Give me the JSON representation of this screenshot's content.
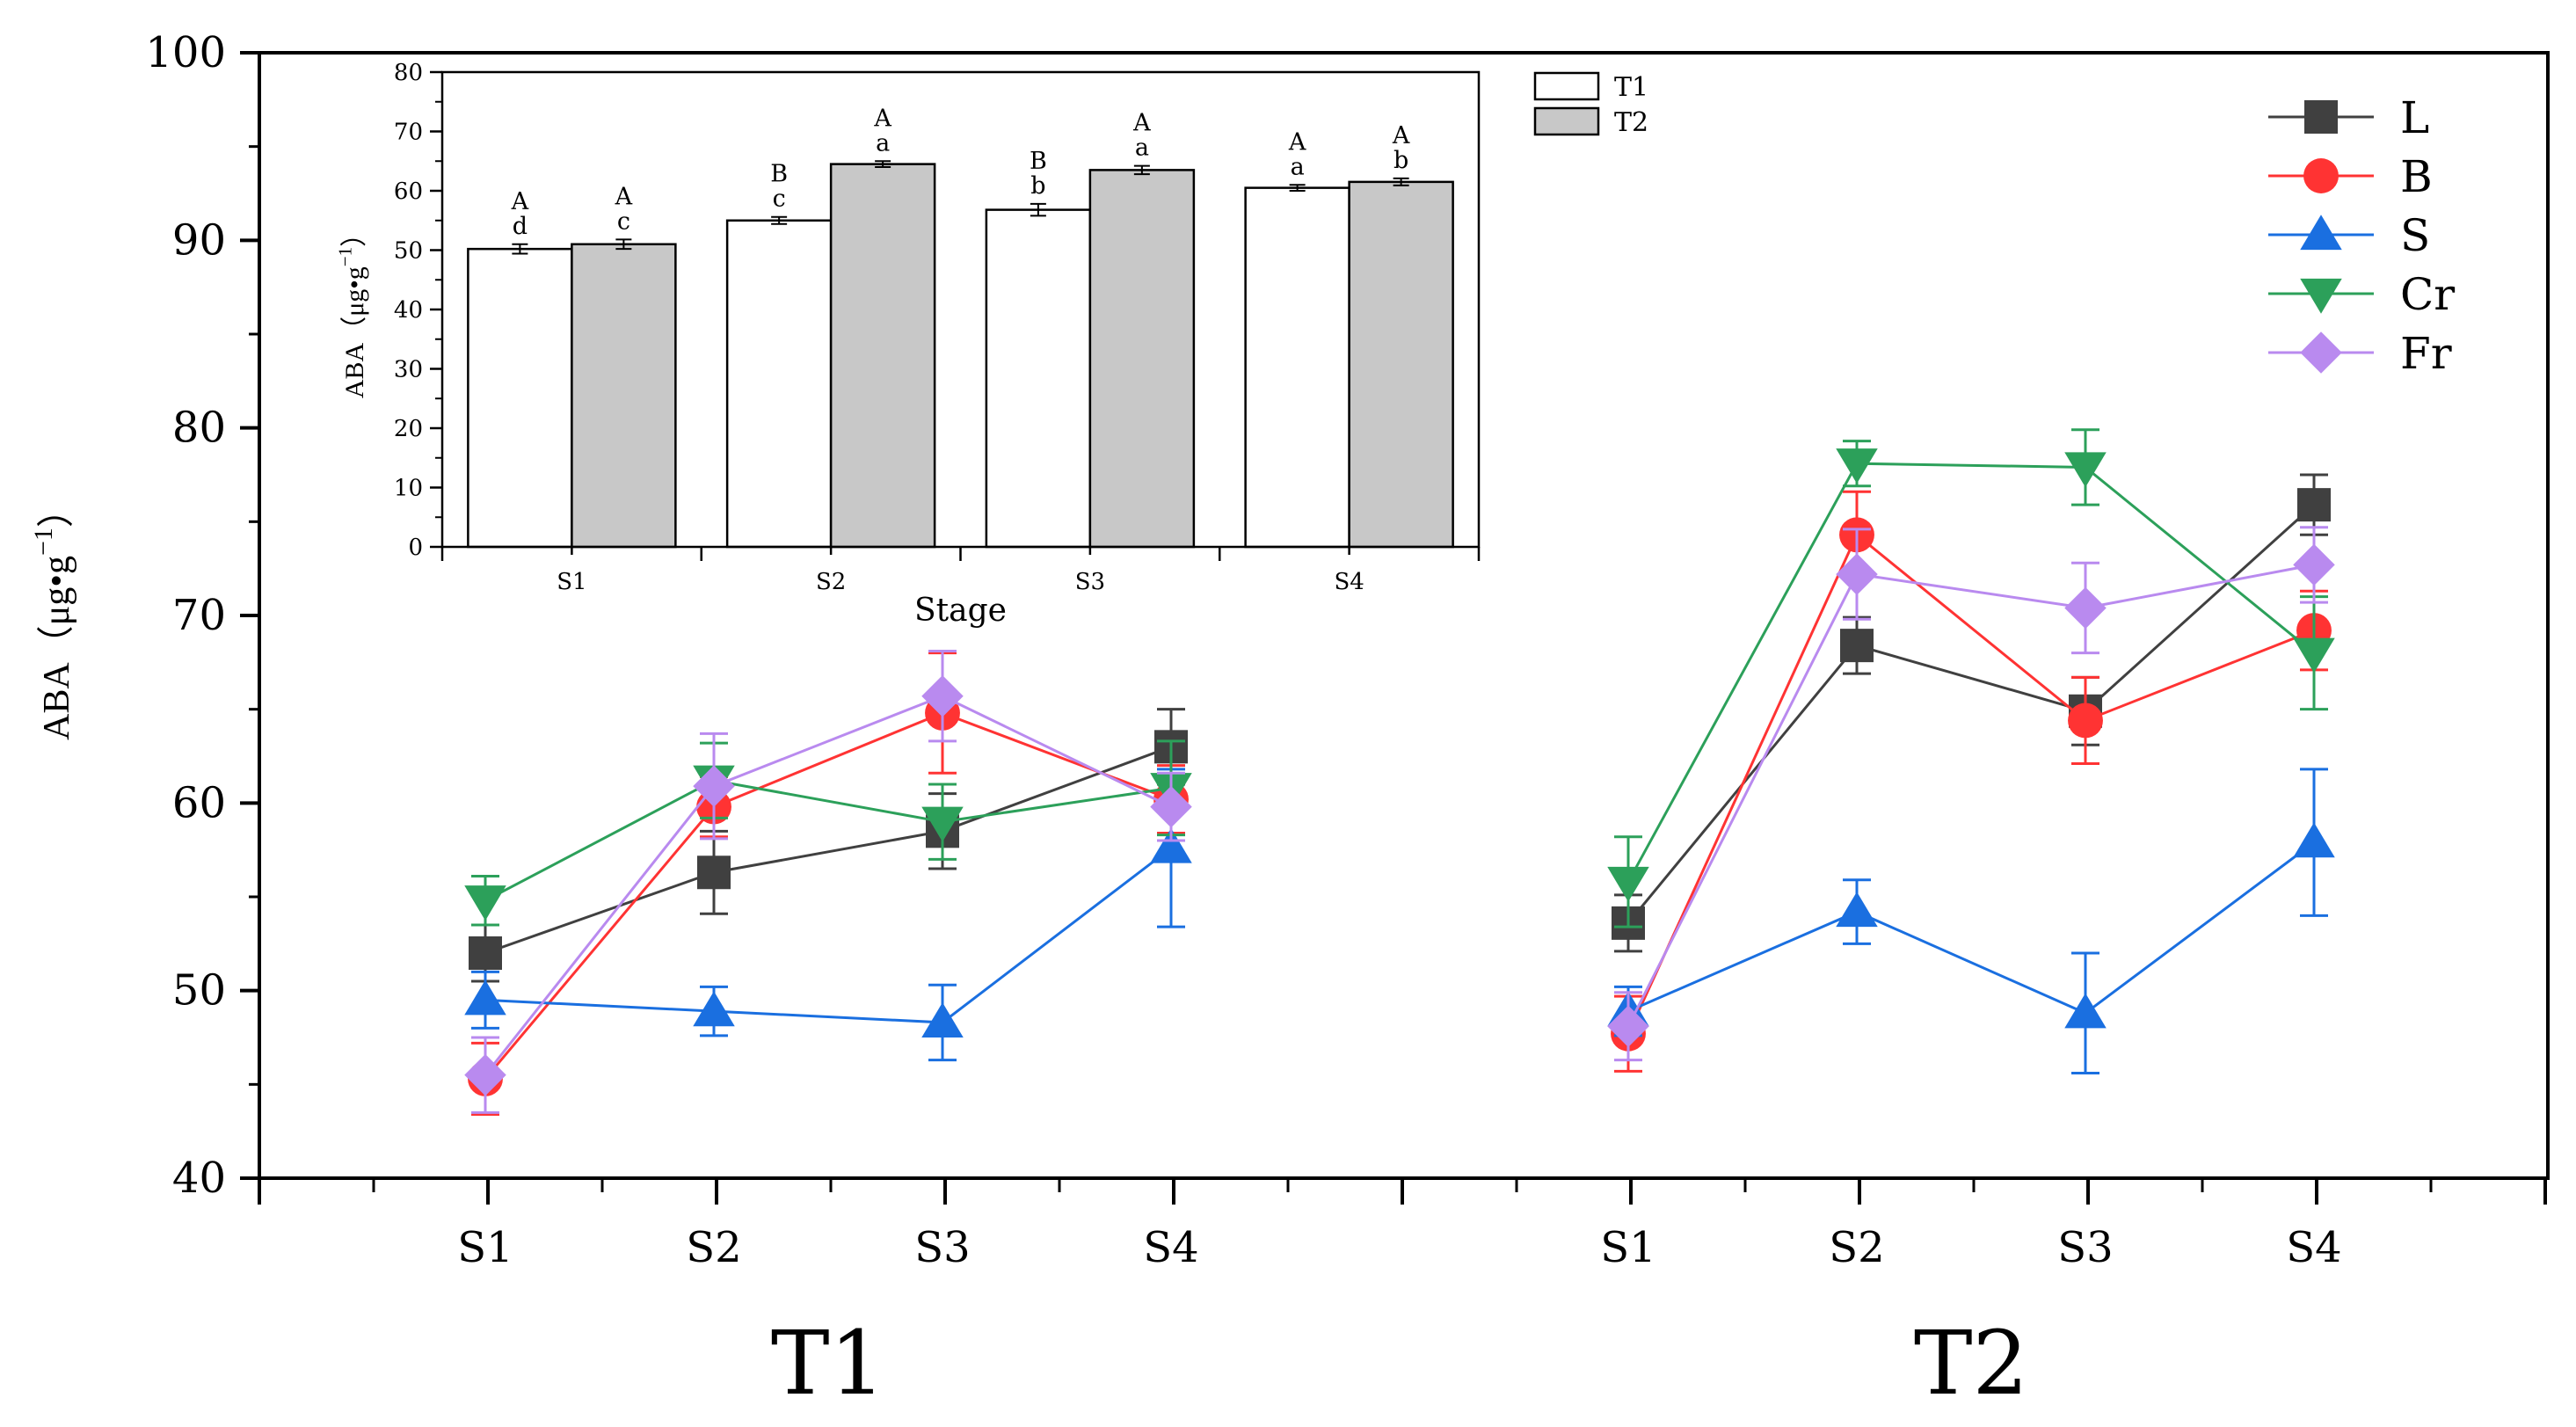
{
  "chart_data": [
    {
      "type": "line",
      "ylabel": "ABA（μg•g",
      "ylabel_sup": "−1",
      "ylabel_close": "）",
      "ylim": [
        40,
        100
      ],
      "yticks": [
        40,
        50,
        60,
        70,
        80,
        90,
        100
      ],
      "group_labels": [
        "T1",
        "T2"
      ],
      "categories": [
        "S1",
        "S2",
        "S3",
        "S4"
      ],
      "series": [
        {
          "name": "L",
          "color": "#404040",
          "marker": "square",
          "values": [
            [
              52.0,
              56.3,
              58.5,
              63.0
            ],
            [
              53.6,
              68.4,
              64.9,
              75.9
            ]
          ],
          "errors": [
            [
              1.5,
              2.2,
              2.0,
              2.0
            ],
            [
              1.5,
              1.5,
              1.8,
              1.6
            ]
          ]
        },
        {
          "name": "B",
          "color": "#ff3333",
          "marker": "circle",
          "values": [
            [
              45.3,
              59.8,
              64.8,
              60.2
            ],
            [
              47.7,
              74.3,
              64.4,
              69.2
            ]
          ],
          "errors": [
            [
              1.9,
              1.6,
              3.2,
              1.8
            ],
            [
              2.0,
              2.3,
              2.3,
              2.1
            ]
          ]
        },
        {
          "name": "S",
          "color": "#1a6fe0",
          "marker": "triangle-up",
          "values": [
            [
              49.5,
              48.9,
              48.3,
              57.6
            ],
            [
              48.9,
              54.2,
              48.8,
              57.9
            ]
          ],
          "errors": [
            [
              1.5,
              1.3,
              2.0,
              4.2
            ],
            [
              1.3,
              1.7,
              3.2,
              3.9
            ]
          ]
        },
        {
          "name": "Cr",
          "color": "#2ca05a",
          "marker": "triangle-down",
          "values": [
            [
              54.8,
              61.2,
              59.0,
              60.8
            ],
            [
              55.8,
              78.1,
              77.9,
              68.0
            ]
          ],
          "errors": [
            [
              1.3,
              2.0,
              2.0,
              2.5
            ],
            [
              2.4,
              1.2,
              2.0,
              3.0
            ]
          ]
        },
        {
          "name": "Fr",
          "color": "#b98aef",
          "marker": "diamond",
          "values": [
            [
              45.5,
              60.9,
              65.7,
              59.8
            ],
            [
              48.1,
              72.2,
              70.4,
              72.7
            ]
          ],
          "errors": [
            [
              2.0,
              2.8,
              2.4,
              1.8
            ],
            [
              1.8,
              2.4,
              2.4,
              2.0
            ]
          ]
        }
      ]
    },
    {
      "type": "bar",
      "xlabel": "Stage",
      "ylabel": "ABA（μg•g",
      "ylabel_sup": "−1",
      "ylabel_close": "）",
      "ylim": [
        0,
        80
      ],
      "yticks": [
        0,
        10,
        20,
        30,
        40,
        50,
        60,
        70,
        80
      ],
      "categories": [
        "S1",
        "S2",
        "S3",
        "S4"
      ],
      "series": [
        {
          "name": "T1",
          "color": "#ffffff",
          "values": [
            50.2,
            55.0,
            56.8,
            60.5
          ],
          "errors": [
            0.8,
            0.6,
            1.0,
            0.5
          ],
          "labels_upper": [
            "A",
            "B",
            "B",
            "A"
          ],
          "labels_lower": [
            "d",
            "c",
            "b",
            "a"
          ]
        },
        {
          "name": "T2",
          "color": "#c8c8c8",
          "values": [
            51.0,
            64.5,
            63.5,
            61.5
          ],
          "errors": [
            0.8,
            0.5,
            0.7,
            0.6
          ],
          "labels_upper": [
            "A",
            "A",
            "A",
            "A"
          ],
          "labels_lower": [
            "c",
            "a",
            "a",
            "b"
          ]
        }
      ]
    }
  ]
}
